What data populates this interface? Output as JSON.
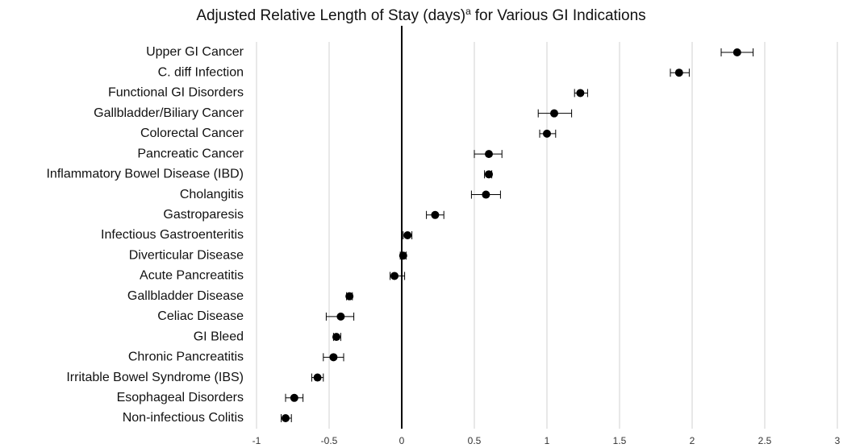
{
  "chart_data": {
    "type": "forest",
    "title": "Adjusted Relative Length of Stay (days)",
    "title_superscript": "a",
    "title_end": "for Various GI Indications",
    "categories": [
      "Upper GI Cancer",
      "C. diff Infection",
      "Functional GI Disorders",
      "Gallbladder/Biliary Cancer",
      "Colorectal Cancer",
      "Pancreatic Cancer",
      "Inflammatory Bowel Disease (IBD)",
      "Cholangitis",
      "Gastroparesis",
      "Infectious Gastroenteritis",
      "Diverticular Disease",
      "Acute Pancreatitis",
      "Gallbladder Disease",
      "Celiac Disease",
      "GI Bleed",
      "Chronic Pancreatitis",
      "Irritable Bowel Syndrome (IBS)",
      "Esophageal Disorders",
      "Non-infectious Colitis"
    ],
    "values": [
      2.31,
      1.91,
      1.23,
      1.05,
      1.0,
      0.6,
      0.6,
      0.58,
      0.23,
      0.04,
      0.01,
      -0.05,
      -0.36,
      -0.42,
      -0.45,
      -0.47,
      -0.58,
      -0.74,
      -0.8
    ],
    "lower": [
      2.2,
      1.85,
      1.19,
      0.94,
      0.95,
      0.5,
      0.57,
      0.48,
      0.17,
      0.01,
      -0.01,
      -0.08,
      -0.38,
      -0.52,
      -0.47,
      -0.54,
      -0.62,
      -0.8,
      -0.83
    ],
    "upper": [
      2.42,
      1.98,
      1.28,
      1.17,
      1.06,
      0.69,
      0.62,
      0.68,
      0.29,
      0.07,
      0.03,
      0.02,
      -0.34,
      -0.33,
      -0.42,
      -0.4,
      -0.54,
      -0.68,
      -0.76
    ],
    "xlim": [
      -1,
      3
    ],
    "xticks": [
      -1,
      -0.5,
      0,
      0.5,
      1,
      1.5,
      2,
      2.5,
      3
    ],
    "reference_line": 0,
    "grid": true,
    "color": "#000000"
  }
}
